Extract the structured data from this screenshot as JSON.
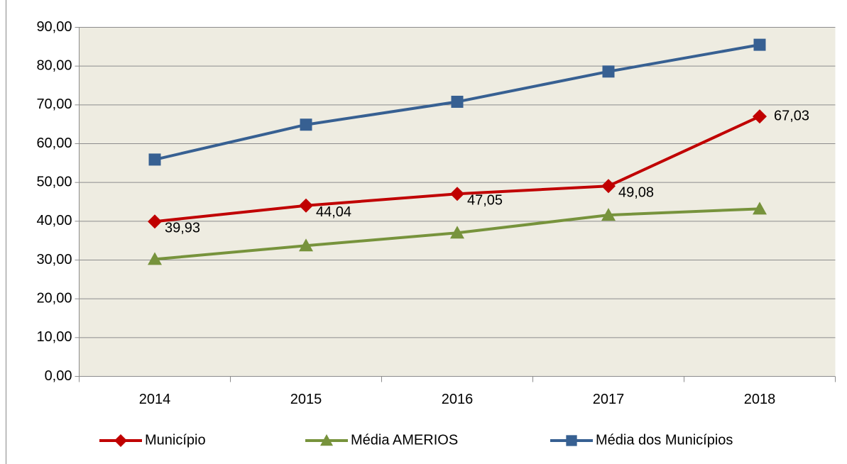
{
  "chart_data": {
    "type": "line",
    "categories": [
      "2014",
      "2015",
      "2016",
      "2017",
      "2018"
    ],
    "series": [
      {
        "name": "Município",
        "color": "#c00000",
        "marker": "diamond",
        "values": [
          39.93,
          44.04,
          47.05,
          49.08,
          67.03
        ],
        "value_labels": [
          "39,93",
          "44,04",
          "47,05",
          "49,08",
          "67,03"
        ]
      },
      {
        "name": "Média AMERIOS",
        "color": "#77933c",
        "marker": "triangle",
        "values": [
          30.2,
          33.7,
          37.0,
          41.6,
          43.2
        ]
      },
      {
        "name": "Média dos Municípios",
        "color": "#376092",
        "marker": "square",
        "values": [
          55.9,
          64.9,
          70.8,
          78.6,
          85.5
        ]
      }
    ],
    "ylim": [
      0,
      90
    ],
    "yticks": [
      {
        "value": 0,
        "label": "0,00"
      },
      {
        "value": 10,
        "label": "10,00"
      },
      {
        "value": 20,
        "label": "20,00"
      },
      {
        "value": 30,
        "label": "30,00"
      },
      {
        "value": 40,
        "label": "40,00"
      },
      {
        "value": 50,
        "label": "50,00"
      },
      {
        "value": 60,
        "label": "60,00"
      },
      {
        "value": 70,
        "label": "70,00"
      },
      {
        "value": 80,
        "label": "80,00"
      },
      {
        "value": 90,
        "label": "90,00"
      }
    ],
    "grid": true,
    "legend": "bottom"
  }
}
